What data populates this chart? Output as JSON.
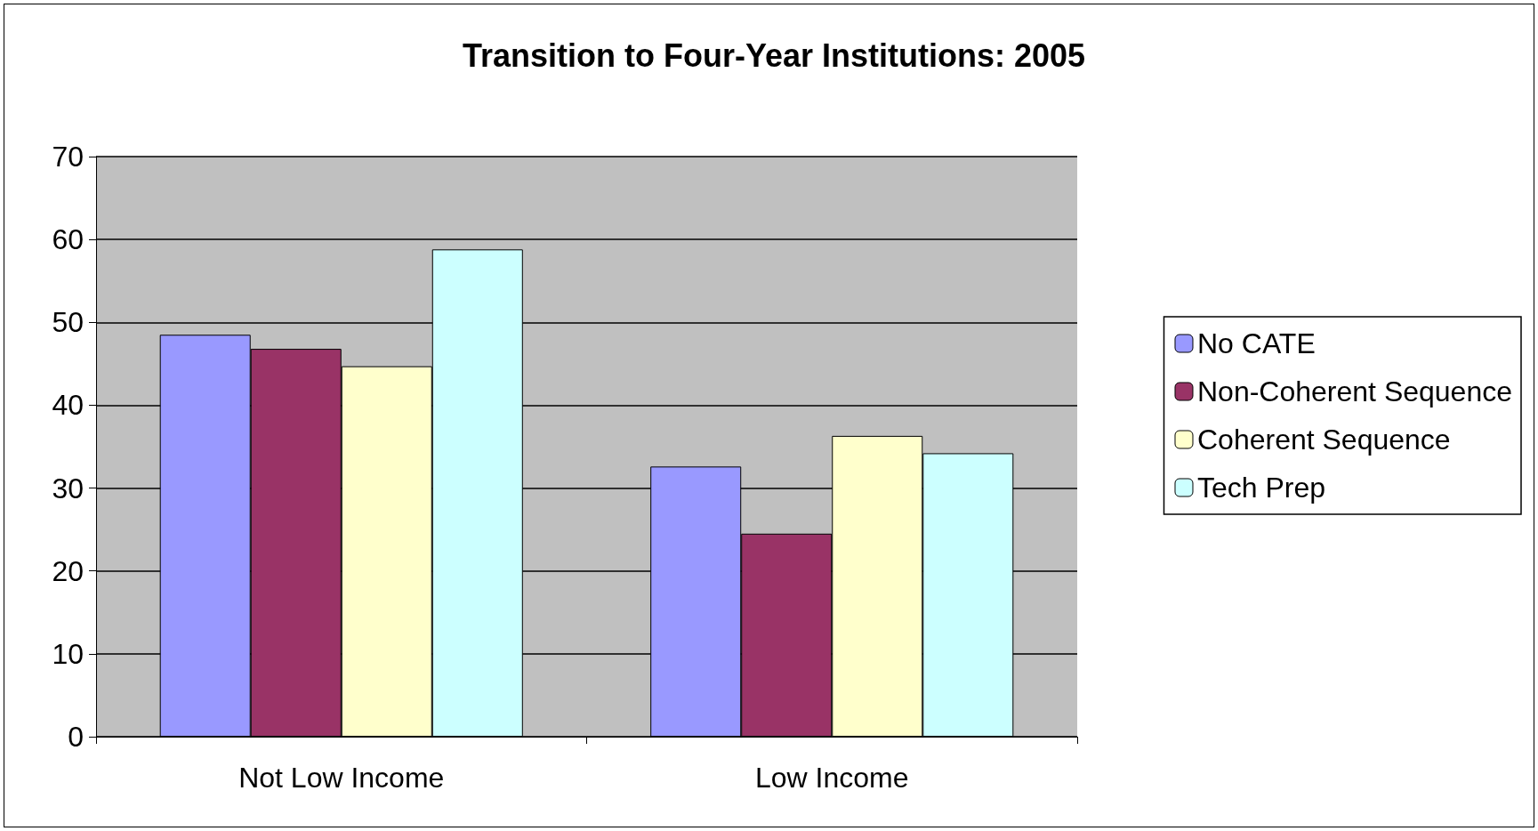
{
  "chart_data": {
    "type": "bar",
    "title": "Transition to Four-Year Institutions: 2005",
    "categories": [
      "Not Low Income",
      "Low Income"
    ],
    "series": [
      {
        "name": "No CATE",
        "color": "#9999ff",
        "values": [
          48.5,
          32.6
        ]
      },
      {
        "name": "Non-Coherent Sequence",
        "color": "#993366",
        "values": [
          46.8,
          24.5
        ]
      },
      {
        "name": "Coherent Sequence",
        "color": "#ffffcc",
        "values": [
          44.7,
          36.3
        ]
      },
      {
        "name": "Tech Prep",
        "color": "#ccffff",
        "values": [
          58.8,
          34.2
        ]
      }
    ],
    "ylim": [
      0,
      70
    ],
    "yticks": [
      0,
      10,
      20,
      30,
      40,
      50,
      60,
      70
    ],
    "grid": "y",
    "legend": "right"
  }
}
